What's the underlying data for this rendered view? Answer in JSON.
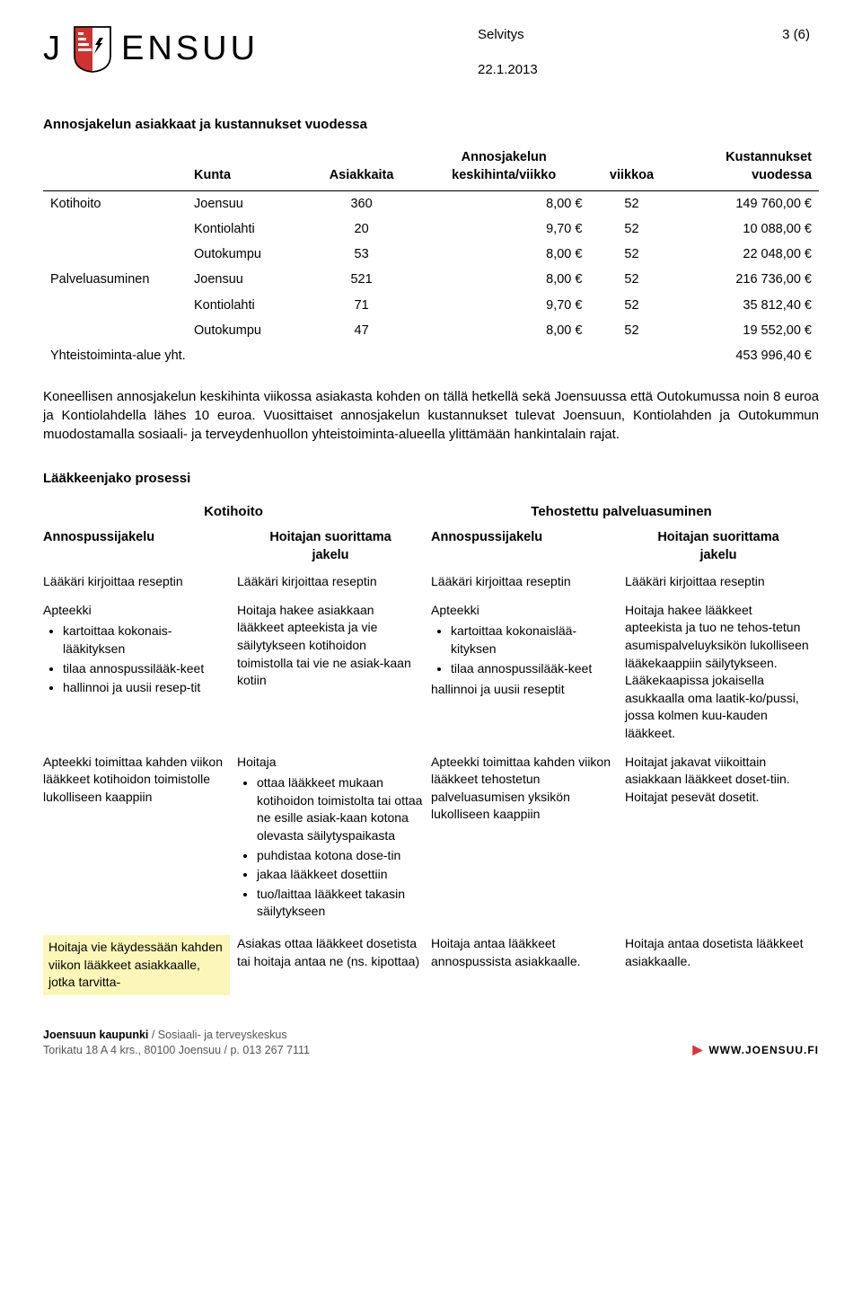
{
  "header": {
    "wordmark_left": "J",
    "wordmark_right": "ENSUU",
    "doc_type": "Selvitys",
    "page_indicator": "3 (6)",
    "date": "22.1.2013"
  },
  "table1": {
    "title": "Annosjakelun asiakkaat ja kustannukset vuodessa",
    "headers": {
      "blank": "",
      "kunta": "Kunta",
      "asiakkaita": "Asiakkaita",
      "keskihinta_line1": "Annosjakelun",
      "keskihinta_line2": "keskihinta/viikko",
      "viikkoa": "viikkoa",
      "kust_line1": "Kustannukset",
      "kust_line2": "vuodessa"
    },
    "rows": [
      {
        "cat": "Kotihoito",
        "kunta": "Joensuu",
        "a": "360",
        "h": "8,00 €",
        "v": "52",
        "k": "149 760,00 €"
      },
      {
        "cat": "",
        "kunta": "Kontiolahti",
        "a": "20",
        "h": "9,70 €",
        "v": "52",
        "k": "10 088,00 €"
      },
      {
        "cat": "",
        "kunta": "Outokumpu",
        "a": "53",
        "h": "8,00 €",
        "v": "52",
        "k": "22 048,00 €"
      },
      {
        "cat": "Palveluasuminen",
        "kunta": "Joensuu",
        "a": "521",
        "h": "8,00 €",
        "v": "52",
        "k": "216 736,00 €"
      },
      {
        "cat": "",
        "kunta": "Kontiolahti",
        "a": "71",
        "h": "9,70 €",
        "v": "52",
        "k": "35 812,40 €"
      },
      {
        "cat": "",
        "kunta": "Outokumpu",
        "a": "47",
        "h": "8,00 €",
        "v": "52",
        "k": "19 552,00 €"
      }
    ],
    "total": {
      "label": "Yhteistoiminta-alue yht.",
      "value": "453 996,40 €"
    }
  },
  "para1": "Koneellisen annosjakelun keskihinta viikossa asiakasta kohden on tällä hetkellä sekä Joensuussa että Outokumussa noin 8 euroa ja Kontiolahdella lähes 10 euroa. Vuosittaiset annosjakelun kustannukset tulevat Joensuun, Kontiolahden ja Outokummun muodostamalla sosiaali- ja terveydenhuollon yhteistoiminta-alueella ylittämään hankintalain rajat.",
  "process": {
    "title": "Lääkkeenjako prosessi",
    "group_headers": {
      "left": "Kotihoito",
      "right": "Tehostettu palveluasuminen"
    },
    "col_headers": {
      "c1": "Annospussijakelu",
      "c2_l1": "Hoitajan suorittama",
      "c2_l2": "jakelu",
      "c3": "Annospussijakelu",
      "c4_l1": "Hoitajan suorittama",
      "c4_l2": "jakelu"
    },
    "row_resepti": "Lääkäri kirjoittaa reseptin",
    "row2": {
      "c1_lead": "Apteekki",
      "c1_items": [
        "kartoittaa kokonais-lääkityksen",
        "tilaa annospussilääk-keet",
        "hallinnoi ja uusii resep-tit"
      ],
      "c2": "Hoitaja hakee asiakkaan lääkkeet apteekista ja vie säilytykseen kotihoidon toimistolla tai vie ne asiak-kaan kotiin",
      "c3_lead": "Apteekki",
      "c3_items": [
        "kartoittaa kokonaislää-kityksen",
        "tilaa annospussilääk-keet"
      ],
      "c3_tail": "hallinnoi ja uusii reseptit",
      "c4": "Hoitaja hakee lääkkeet apteekista ja tuo ne tehos-tetun asumispalveluyksikön lukolliseen lääkekaappiin säilytykseen. Lääkekaapissa jokaisella asukkaalla oma laatik-ko/pussi, jossa kolmen kuu-kauden lääkkeet."
    },
    "row3": {
      "c1": "Apteekki toimittaa kahden viikon lääkkeet kotihoidon toimistolle lukolliseen kaappiin",
      "c2_lead": "Hoitaja",
      "c2_items": [
        "ottaa lääkkeet mukaan kotihoidon toimistolta tai ottaa ne esille asiak-kaan kotona olevasta säilytyspaikasta",
        "puhdistaa kotona dose-tin",
        "jakaa lääkkeet dosettiin",
        "tuo/laittaa lääkkeet takasin säilytykseen"
      ],
      "c3": "Apteekki toimittaa kahden viikon lääkkeet tehostetun palveluasumisen yksikön lukolliseen kaappiin",
      "c4": "Hoitajat jakavat viikoittain asiakkaan lääkkeet doset-tiin. Hoitajat pesevät dosetit."
    },
    "row4": {
      "c1": "Hoitaja vie käydessään kahden viikon lääkkeet asiakkaalle, jotka tarvitta-",
      "c2": "Asiakas ottaa lääkkeet dosetista tai hoitaja antaa ne (ns. kipottaa)",
      "c3": "Hoitaja antaa lääkkeet annospussista asiakkaalle.",
      "c4": "Hoitaja antaa dosetista lääkkeet asiakkaalle."
    }
  },
  "footer": {
    "line1_b": "Joensuun kaupunki",
    "line1_rest": " / Sosiaali- ja terveyskeskus",
    "line2": "Torikatu 18 A 4 krs., 80100 Joensuu / p. 013 267 7111",
    "site": "WWW.JOENSUU.FI"
  },
  "colors": {
    "highlight_bg": "#fcf6b8",
    "shield_red": "#d0332f",
    "text": "#000000",
    "footer_gray": "#555555"
  }
}
